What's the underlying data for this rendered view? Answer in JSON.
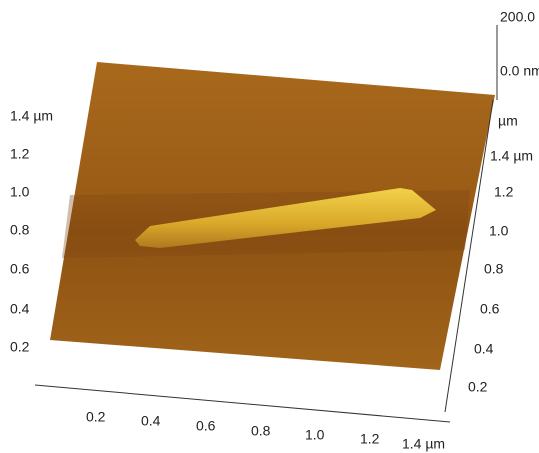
{
  "z_scale": {
    "max": "200.0",
    "min": "0.0 nm"
  },
  "left_axis": [
    "0.2",
    "0.4",
    "0.6",
    "0.8",
    "1.0",
    "1.2",
    "1.4 µm"
  ],
  "bottom_axis": [
    "0.2",
    "0.4",
    "0.6",
    "0.8",
    "1.0",
    "1.2",
    "1.4 µm"
  ],
  "right_axis": {
    "unit": "µm",
    "labels": [
      "0.2",
      "0.4",
      "0.6",
      "0.8",
      "1.0",
      "1.2",
      "1.4 µm"
    ]
  }
}
